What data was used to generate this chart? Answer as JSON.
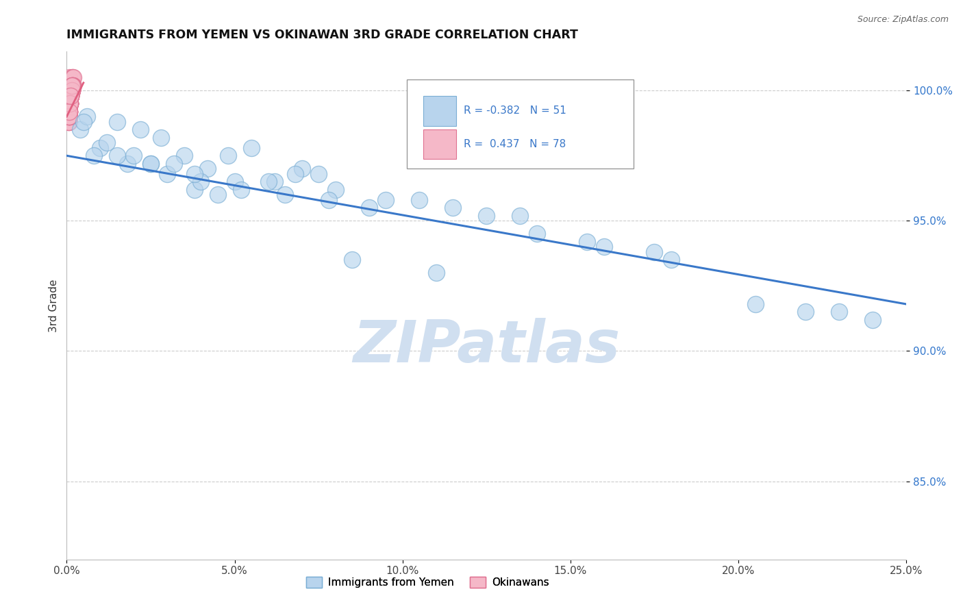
{
  "title": "IMMIGRANTS FROM YEMEN VS OKINAWAN 3RD GRADE CORRELATION CHART",
  "source": "Source: ZipAtlas.com",
  "ylabel": "3rd Grade",
  "xlim": [
    0.0,
    25.0
  ],
  "ylim": [
    82.0,
    101.5
  ],
  "yticks": [
    85.0,
    90.0,
    95.0,
    100.0
  ],
  "xticks": [
    0.0,
    5.0,
    10.0,
    15.0,
    20.0,
    25.0
  ],
  "legend_r1": "-0.382",
  "legend_n1": "51",
  "legend_r2": "0.437",
  "legend_n2": "78",
  "blue_color": "#b8d4ed",
  "blue_edge": "#7aaed4",
  "pink_color": "#f5b8c8",
  "pink_edge": "#e07090",
  "line_color": "#3a78c9",
  "pink_line_color": "#e06080",
  "watermark_color": "#d0dff0",
  "background_color": "#ffffff",
  "grid_color": "#cccccc",
  "title_color": "#111111",
  "ytick_color": "#3377cc",
  "blue_scatter_x": [
    0.4,
    0.6,
    1.5,
    2.2,
    1.0,
    0.8,
    2.8,
    3.5,
    1.8,
    4.2,
    5.5,
    2.5,
    3.0,
    4.8,
    6.2,
    7.0,
    5.0,
    6.8,
    3.8,
    4.5,
    7.5,
    8.0,
    9.5,
    1.2,
    2.0,
    3.2,
    5.2,
    6.5,
    4.0,
    7.8,
    9.0,
    11.5,
    14.0,
    12.5,
    16.0,
    18.0,
    22.0,
    24.0,
    10.5,
    13.5,
    15.5,
    17.5,
    1.5,
    0.5,
    2.5,
    3.8,
    6.0,
    8.5,
    11.0,
    20.5,
    23.0
  ],
  "blue_scatter_y": [
    98.5,
    99.0,
    98.8,
    98.5,
    97.8,
    97.5,
    98.2,
    97.5,
    97.2,
    97.0,
    97.8,
    97.2,
    96.8,
    97.5,
    96.5,
    97.0,
    96.5,
    96.8,
    96.2,
    96.0,
    96.8,
    96.2,
    95.8,
    98.0,
    97.5,
    97.2,
    96.2,
    96.0,
    96.5,
    95.8,
    95.5,
    95.5,
    94.5,
    95.2,
    94.0,
    93.5,
    91.5,
    91.2,
    95.8,
    95.2,
    94.2,
    93.8,
    97.5,
    98.8,
    97.2,
    96.8,
    96.5,
    93.5,
    93.0,
    91.8,
    91.5
  ],
  "pink_scatter_x": [
    0.05,
    0.08,
    0.06,
    0.1,
    0.12,
    0.15,
    0.08,
    0.05,
    0.1,
    0.12,
    0.08,
    0.06,
    0.15,
    0.18,
    0.1,
    0.12,
    0.08,
    0.05,
    0.1,
    0.15,
    0.12,
    0.08,
    0.18,
    0.2,
    0.1,
    0.08,
    0.12,
    0.15,
    0.06,
    0.1,
    0.08,
    0.12,
    0.15,
    0.1,
    0.08,
    0.05,
    0.12,
    0.18,
    0.1,
    0.08,
    0.12,
    0.15,
    0.1,
    0.08,
    0.12,
    0.15,
    0.1,
    0.08,
    0.12,
    0.2,
    0.15,
    0.1,
    0.08,
    0.12,
    0.15,
    0.1,
    0.08,
    0.12,
    0.18,
    0.1,
    0.08,
    0.12,
    0.15,
    0.1,
    0.08,
    0.12,
    0.15,
    0.1,
    0.08,
    0.12,
    0.15,
    0.1,
    0.08,
    0.12,
    0.15,
    0.1,
    0.08,
    0.12
  ],
  "pink_scatter_y": [
    100.2,
    100.5,
    100.0,
    99.8,
    100.2,
    100.5,
    99.5,
    99.2,
    99.8,
    100.0,
    99.5,
    99.0,
    100.2,
    100.5,
    99.8,
    100.0,
    99.2,
    98.8,
    99.5,
    100.0,
    99.8,
    99.2,
    100.2,
    100.5,
    99.5,
    99.0,
    99.8,
    100.0,
    99.2,
    99.5,
    98.8,
    99.8,
    100.0,
    99.5,
    99.2,
    98.8,
    99.8,
    100.2,
    99.5,
    99.2,
    99.8,
    100.0,
    99.5,
    99.0,
    99.8,
    100.2,
    99.5,
    99.0,
    99.8,
    100.2,
    100.0,
    99.5,
    99.2,
    99.8,
    100.0,
    99.5,
    99.0,
    99.8,
    100.2,
    99.5,
    99.2,
    99.8,
    100.0,
    99.5,
    99.0,
    99.8,
    100.2,
    99.5,
    99.2,
    99.8,
    100.0,
    99.5,
    99.0,
    99.8,
    100.2,
    99.5,
    99.2,
    99.8
  ],
  "trend_x": [
    0.0,
    25.0
  ],
  "trend_y": [
    97.5,
    91.8
  ],
  "pink_trend_x": [
    0.0,
    0.5
  ],
  "pink_trend_y": [
    99.0,
    100.3
  ]
}
